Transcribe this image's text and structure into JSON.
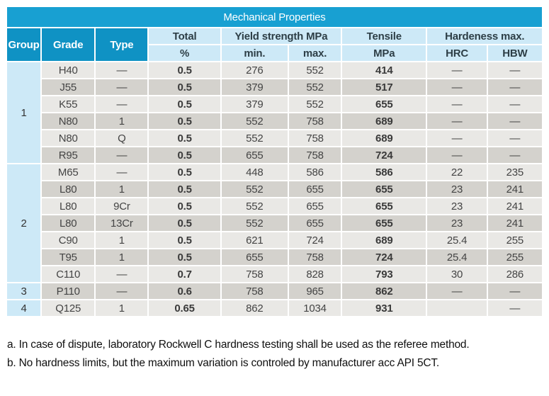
{
  "title": "Mechanical Properties",
  "colors": {
    "title_bar": "#18a0d2",
    "header_dark": "#0f92c4",
    "header_light_blue": "#cde9f7",
    "row_light": "#e9e8e5",
    "row_dark": "#d4d2cd",
    "grid_line": "#ffffff"
  },
  "header": {
    "group": "Group",
    "grade": "Grade",
    "type": "Type",
    "total": "Total",
    "total_unit": "%",
    "yield": "Yield strength MPa",
    "yield_min": "min.",
    "yield_max": "max.",
    "tensile": "Tensile",
    "tensile_unit": "MPa",
    "hardness": "Hardeness max.",
    "hrc": "HRC",
    "hbw": "HBW"
  },
  "groups": [
    {
      "group": "1",
      "rows": [
        {
          "grade": "H40",
          "type": "—",
          "total": "0.5",
          "min": "276",
          "max": "552",
          "tensile": "414",
          "hrc": "—",
          "hbw": "—"
        },
        {
          "grade": "J55",
          "type": "—",
          "total": "0.5",
          "min": "379",
          "max": "552",
          "tensile": "517",
          "hrc": "—",
          "hbw": "—"
        },
        {
          "grade": "K55",
          "type": "—",
          "total": "0.5",
          "min": "379",
          "max": "552",
          "tensile": "655",
          "hrc": "—",
          "hbw": "—"
        },
        {
          "grade": "N80",
          "type": "1",
          "total": "0.5",
          "min": "552",
          "max": "758",
          "tensile": "689",
          "hrc": "—",
          "hbw": "—"
        },
        {
          "grade": "N80",
          "type": "Q",
          "total": "0.5",
          "min": "552",
          "max": "758",
          "tensile": "689",
          "hrc": "—",
          "hbw": "—"
        },
        {
          "grade": "R95",
          "type": "—",
          "total": "0.5",
          "min": "655",
          "max": "758",
          "tensile": "724",
          "hrc": "—",
          "hbw": "—"
        }
      ]
    },
    {
      "group": "2",
      "rows": [
        {
          "grade": "M65",
          "type": "—",
          "total": "0.5",
          "min": "448",
          "max": "586",
          "tensile": "586",
          "hrc": "22",
          "hbw": "235"
        },
        {
          "grade": "L80",
          "type": "1",
          "total": "0.5",
          "min": "552",
          "max": "655",
          "tensile": "655",
          "hrc": "23",
          "hbw": "241"
        },
        {
          "grade": "L80",
          "type": "9Cr",
          "total": "0.5",
          "min": "552",
          "max": "655",
          "tensile": "655",
          "hrc": "23",
          "hbw": "241"
        },
        {
          "grade": "L80",
          "type": "13Cr",
          "total": "0.5",
          "min": "552",
          "max": "655",
          "tensile": "655",
          "hrc": "23",
          "hbw": "241"
        },
        {
          "grade": "C90",
          "type": "1",
          "total": "0.5",
          "min": "621",
          "max": "724",
          "tensile": "689",
          "hrc": "25.4",
          "hbw": "255"
        },
        {
          "grade": "T95",
          "type": "1",
          "total": "0.5",
          "min": "655",
          "max": "758",
          "tensile": "724",
          "hrc": "25.4",
          "hbw": "255"
        },
        {
          "grade": "C110",
          "type": "—",
          "total": "0.7",
          "min": "758",
          "max": "828",
          "tensile": "793",
          "hrc": "30",
          "hbw": "286"
        }
      ]
    },
    {
      "group": "3",
      "rows": [
        {
          "grade": "P110",
          "type": "—",
          "total": "0.6",
          "min": "758",
          "max": "965",
          "tensile": "862",
          "hrc": "—",
          "hbw": "—"
        }
      ]
    },
    {
      "group": "4",
      "rows": [
        {
          "grade": "Q125",
          "type": "1",
          "total": "0.65",
          "min": "862",
          "max": "1034",
          "tensile": "931",
          "hrc": "",
          "hbw": "—"
        }
      ]
    }
  ],
  "footnotes": [
    "a. In case of dispute, laboratory Rockwell C hardness testing shall be used as the referee method.",
    "b. No hardness limits, but the maximum variation is controled by manufacturer acc API 5CT."
  ]
}
